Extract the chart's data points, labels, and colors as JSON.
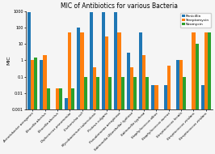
{
  "title": "MIC of Antibiotics for various Bacteria",
  "ylabel": "MIC",
  "categories": [
    "Acinetobacter aerogenes",
    "Brucella abortus",
    "Brucella abortus",
    "Diplococcus pneumoniae",
    "Escherichia coli",
    "Mycobacterium tuberculosis",
    "Proteus vulgaris",
    "Pseudomonas aeruginosa",
    "Salmonella (Eberthella) typhosa",
    "Salmonella typhosa",
    "Staphylococcus albus",
    "Staphylococcus aureus",
    "Streptococcus fecalis",
    "Streptococcus viridans",
    "Streptococcus viridans"
  ],
  "penicillin": [
    850,
    1.0,
    0.001,
    0.005,
    100,
    850,
    850,
    850,
    3.0,
    50,
    0.03,
    0.03,
    1.0,
    0.001,
    0.03
  ],
  "streptomycin": [
    1.0,
    2.0,
    0.02,
    50,
    50,
    0.4,
    30,
    50,
    0.4,
    2.0,
    0.03,
    0.5,
    1.0,
    50,
    50
  ],
  "neomycin": [
    1.5,
    0.02,
    0.02,
    0.02,
    0.1,
    0.1,
    0.1,
    0.1,
    0.1,
    0.1,
    0.001,
    0.001,
    0.1,
    10,
    50
  ],
  "colors": {
    "penicillin": "#1f77b4",
    "streptomycin": "#ff7f0e",
    "neomycin": "#2ca02c"
  },
  "ylim_log": [
    0.001,
    1000
  ],
  "yticks": [
    0.001,
    0.01,
    0.1,
    1,
    10,
    100,
    1000
  ],
  "ytick_labels": [
    "0.001",
    "0.01",
    "0.1",
    "1",
    "10",
    "100",
    "1000"
  ],
  "legend_labels": [
    "Penicillin",
    "Streptomycin",
    "Neomycin"
  ],
  "bg_color": "#f5f5f5"
}
